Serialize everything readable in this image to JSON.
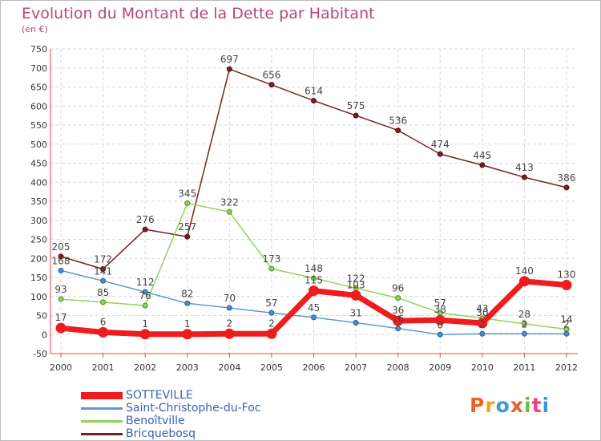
{
  "header": {
    "title": "Evolution du Montant de la Dette par Habitant",
    "subtitle": "(en €)"
  },
  "logo": {
    "text": "Proxiti",
    "colors": [
      "#e8622a",
      "#f2a31b",
      "#3c9ad8",
      "#e8622a",
      "#6cbf3a",
      "#e94080",
      "#3c9ad8"
    ]
  },
  "chart_data": {
    "type": "line",
    "title": "Evolution du Montant de la Dette par Habitant",
    "subtitle": "(en €)",
    "xlabel": "",
    "ylabel": "",
    "x": [
      "2000",
      "2001",
      "2002",
      "2003",
      "2004",
      "2005",
      "2006",
      "2007",
      "2008",
      "2009",
      "2010",
      "2011",
      "2012"
    ],
    "ylim": [
      -50,
      750
    ],
    "yticks": [
      -50,
      0,
      50,
      100,
      150,
      200,
      250,
      300,
      350,
      400,
      450,
      500,
      550,
      600,
      650,
      700,
      750
    ],
    "grid": true,
    "legend_position": "bottom-left",
    "series": [
      {
        "name": "Bricquebosq",
        "color": "#7b2020",
        "values": [
          205,
          172,
          276,
          257,
          697,
          656,
          614,
          575,
          536,
          474,
          445,
          413,
          386
        ],
        "labels": [
          "205",
          "172",
          "276",
          "257",
          "697",
          "656",
          "614",
          "575",
          "536",
          "474",
          "445",
          "413",
          "386"
        ]
      },
      {
        "name": "Benoîtville",
        "color": "#8fd45a",
        "values": [
          93,
          85,
          76,
          345,
          322,
          173,
          148,
          122,
          96,
          57,
          43,
          28,
          14
        ],
        "labels": [
          "93",
          "85",
          "76",
          "345",
          "322",
          "173",
          "148",
          "122",
          "96",
          "57",
          "43",
          "28",
          "14"
        ]
      },
      {
        "name": "Saint-Christophe-du-Foc",
        "color": "#5b9bd5",
        "values": [
          168,
          141,
          112,
          82,
          70,
          57,
          45,
          31,
          16,
          0,
          2,
          2,
          2
        ],
        "labels": [
          "168",
          "141",
          "112",
          "82",
          "70",
          "57",
          "45",
          "31",
          "16",
          "0",
          "2",
          "2",
          "2"
        ]
      },
      {
        "name": "SOTTEVILLE",
        "color": "#ee1c1c",
        "values": [
          17,
          6,
          1,
          1,
          2,
          2,
          115,
          103,
          36,
          38,
          30,
          140,
          130
        ],
        "labels": [
          "17",
          "6",
          "1",
          "1",
          "2",
          "2",
          "115",
          "103",
          "36",
          "38",
          "30",
          "140",
          "130"
        ]
      }
    ]
  }
}
